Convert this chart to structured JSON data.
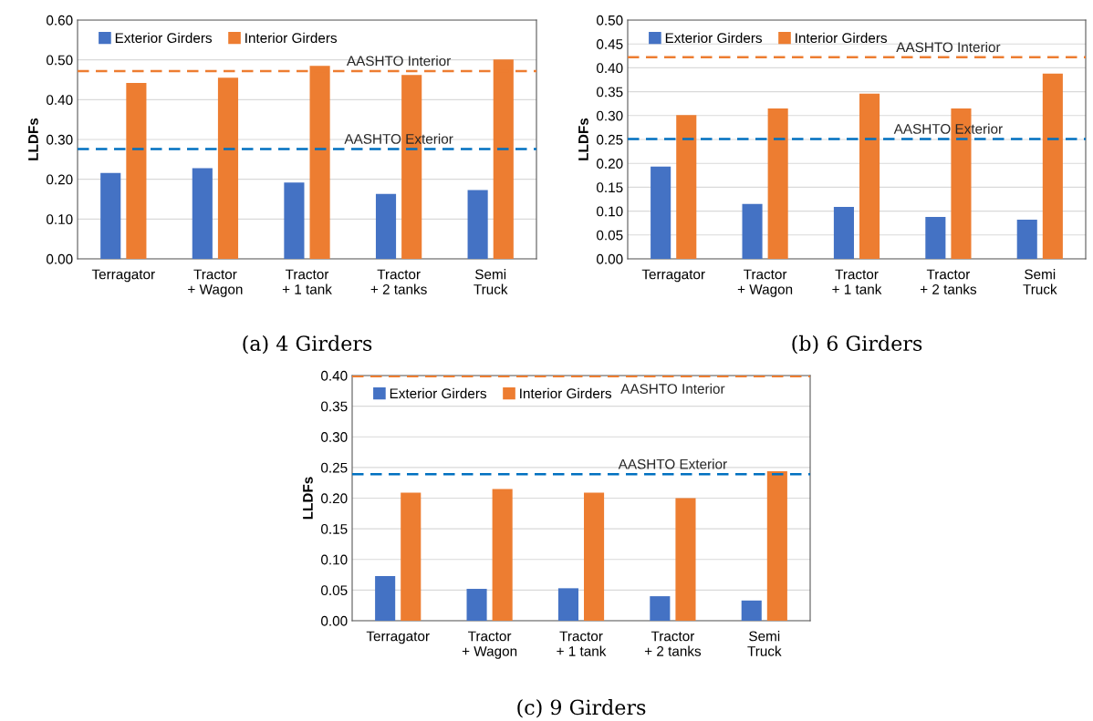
{
  "chart_data": [
    {
      "type": "bar",
      "title": "(a) 4 Girders",
      "ylabel": "LLDFs",
      "categories": [
        "Terragator",
        "Tractor\n+ Wagon",
        "Tractor\n+ 1 tank",
        "Tractor\n+ 2 tanks",
        "Semi\nTruck"
      ],
      "series": [
        {
          "name": "Exterior Girders",
          "color": "#4472c4",
          "values": [
            0.216,
            0.228,
            0.192,
            0.163,
            0.173
          ]
        },
        {
          "name": "Interior Girders",
          "color": "#ed7d31",
          "values": [
            0.442,
            0.455,
            0.485,
            0.462,
            0.501
          ]
        }
      ],
      "ylim": [
        0,
        0.6
      ],
      "yticks": [
        {
          "value": 0,
          "label": "0.00"
        },
        {
          "value": 0.1,
          "label": "0.10"
        },
        {
          "value": 0.2,
          "label": "0.20"
        },
        {
          "value": 0.3,
          "label": "0.30"
        },
        {
          "value": 0.4,
          "label": "0.40"
        },
        {
          "value": 0.5,
          "label": "0.50"
        },
        {
          "value": 0.6,
          "label": "0.60"
        }
      ],
      "ref_lines": [
        {
          "axis": "y",
          "value": 0.472,
          "label": "AASHTO Interior",
          "color": "#ed7d31",
          "line_style": "dashed"
        },
        {
          "axis": "y",
          "value": 0.276,
          "label": "AASHTO Exterior",
          "color": "#0070c0",
          "line_style": "dashed"
        }
      ],
      "grid": "y",
      "legend": "top left"
    },
    {
      "type": "bar",
      "title": "(b) 6 Girders",
      "ylabel": "LLDFs",
      "categories": [
        "Terragator",
        "Tractor\n+ Wagon",
        "Tractor\n+ 1 tank",
        "Tractor\n+ 2 tanks",
        "Semi\nTruck"
      ],
      "series": [
        {
          "name": "Exterior Girders",
          "color": "#4472c4",
          "values": [
            0.193,
            0.115,
            0.109,
            0.088,
            0.082
          ]
        },
        {
          "name": "Interior Girders",
          "color": "#ed7d31",
          "values": [
            0.301,
            0.315,
            0.346,
            0.315,
            0.388
          ]
        }
      ],
      "ylim": [
        0,
        0.5
      ],
      "yticks": [
        {
          "value": 0,
          "label": "0.00"
        },
        0.05,
        {
          "value": 0.1,
          "label": "0.10"
        },
        0.15,
        {
          "value": 0.2,
          "label": "0.20"
        },
        0.25,
        {
          "value": 0.3,
          "label": "0.30"
        },
        0.35,
        {
          "value": 0.4,
          "label": "0.40"
        },
        0.45,
        {
          "value": 0.5,
          "label": "0.50"
        }
      ],
      "ref_lines": [
        {
          "axis": "y",
          "value": 0.422,
          "label": "AASHTO Interior",
          "color": "#ed7d31",
          "line_style": "dashed"
        },
        {
          "axis": "y",
          "value": 0.251,
          "label": "AASHTO Exterior",
          "color": "#0070c0",
          "line_style": "dashed"
        }
      ],
      "grid": "y",
      "legend": "top left"
    },
    {
      "type": "bar",
      "title": "(c) 9 Girders",
      "ylabel": "LLDFs",
      "categories": [
        "Terragator",
        "Tractor\n+ Wagon",
        "Tractor\n+ 1 tank",
        "Tractor\n+ 2 tanks",
        "Semi\nTruck"
      ],
      "series": [
        {
          "name": "Exterior Girders",
          "color": "#4472c4",
          "values": [
            0.073,
            0.052,
            0.053,
            0.04,
            0.033
          ]
        },
        {
          "name": "Interior Girders",
          "color": "#ed7d31",
          "values": [
            0.209,
            0.215,
            0.209,
            0.2,
            0.244
          ]
        }
      ],
      "ylim": [
        0,
        0.4
      ],
      "yticks": [
        {
          "value": 0,
          "label": "0.00"
        },
        0.05,
        {
          "value": 0.1,
          "label": "0.10"
        },
        0.15,
        {
          "value": 0.2,
          "label": "0.20"
        },
        0.25,
        {
          "value": 0.3,
          "label": "0.30"
        },
        0.35,
        {
          "value": 0.4,
          "label": "0.40"
        }
      ],
      "ref_lines": [
        {
          "axis": "y",
          "value": 0.399,
          "label": "AASHTO Interior",
          "color": "#ed7d31",
          "line_style": "dashed"
        },
        {
          "axis": "y",
          "value": 0.239,
          "label": "AASHTO Exterior",
          "color": "#0070c0",
          "line_style": "dashed"
        }
      ],
      "grid": "y",
      "legend": "top left"
    }
  ]
}
